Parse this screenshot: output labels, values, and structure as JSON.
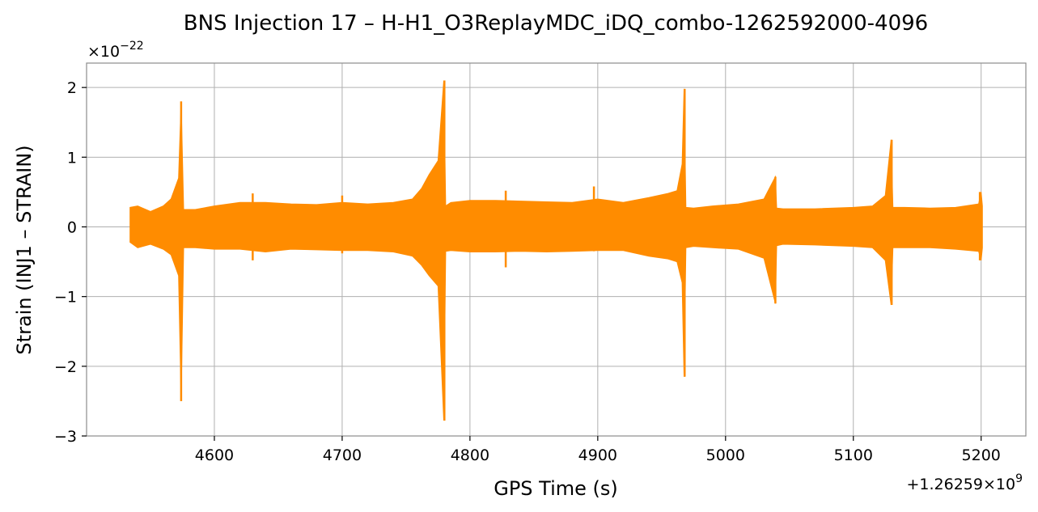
{
  "chart_data": {
    "type": "line",
    "title": "BNS Injection 17 – H-H1_O3ReplayMDC_iDQ_combo-1262592000-4096",
    "xlabel": "GPS Time (s)",
    "ylabel": "Strain (INJ1 – STRAIN)",
    "y_multiplier_text": "×10",
    "y_multiplier_exp": "−22",
    "x_offset_text": "+1.26259×10",
    "x_offset_exp": "9",
    "xlim": [
      4500,
      5235
    ],
    "ylim": [
      -3.0,
      2.35
    ],
    "x_ticks": [
      4600,
      4700,
      4800,
      4900,
      5000,
      5100,
      5200
    ],
    "x_tick_labels": [
      "4600",
      "4700",
      "4800",
      "4900",
      "5000",
      "5100",
      "5200"
    ],
    "y_ticks": [
      -3,
      -2,
      -1,
      0,
      1,
      2
    ],
    "y_tick_labels": [
      "−3",
      "−2",
      "−1",
      "0",
      "1",
      "2"
    ],
    "grid": true,
    "series": [
      {
        "color": "#ff8c00",
        "envelope": {
          "x": [
            4534,
            4540,
            4550,
            4560,
            4566,
            4572,
            4574,
            4576,
            4585,
            4600,
            4620,
            4640,
            4660,
            4680,
            4700,
            4720,
            4740,
            4755,
            4762,
            4768,
            4775,
            4779.5,
            4781,
            4785,
            4800,
            4820,
            4840,
            4860,
            4880,
            4900,
            4920,
            4940,
            4955,
            4962,
            4966,
            4967.5,
            4969,
            4975,
            4990,
            5010,
            5030,
            5039,
            5040,
            5045,
            5070,
            5100,
            5115,
            5125,
            5129.5,
            5131,
            5140,
            5160,
            5180,
            5198,
            5200,
            5201
          ],
          "upper": [
            0.28,
            0.3,
            0.22,
            0.3,
            0.4,
            0.7,
            1.8,
            0.25,
            0.25,
            0.3,
            0.35,
            0.35,
            0.33,
            0.32,
            0.35,
            0.33,
            0.35,
            0.4,
            0.55,
            0.75,
            0.95,
            2.1,
            0.3,
            0.35,
            0.38,
            0.38,
            0.37,
            0.36,
            0.35,
            0.4,
            0.35,
            0.42,
            0.48,
            0.52,
            0.9,
            1.98,
            0.28,
            0.27,
            0.3,
            0.33,
            0.4,
            0.72,
            0.27,
            0.26,
            0.26,
            0.28,
            0.3,
            0.45,
            1.25,
            0.28,
            0.28,
            0.27,
            0.28,
            0.33,
            0.5,
            0.3
          ],
          "lower": [
            -0.22,
            -0.3,
            -0.25,
            -0.32,
            -0.4,
            -0.7,
            -2.5,
            -0.3,
            -0.3,
            -0.32,
            -0.32,
            -0.36,
            -0.32,
            -0.33,
            -0.34,
            -0.34,
            -0.36,
            -0.42,
            -0.55,
            -0.7,
            -0.85,
            -2.78,
            -0.35,
            -0.34,
            -0.36,
            -0.36,
            -0.35,
            -0.36,
            -0.35,
            -0.34,
            -0.34,
            -0.42,
            -0.46,
            -0.5,
            -0.8,
            -2.15,
            -0.3,
            -0.28,
            -0.3,
            -0.32,
            -0.45,
            -1.1,
            -0.27,
            -0.25,
            -0.26,
            -0.28,
            -0.3,
            -0.48,
            -1.12,
            -0.3,
            -0.3,
            -0.3,
            -0.32,
            -0.35,
            -0.48,
            -0.3
          ]
        },
        "spikes": [
          {
            "x": 4574,
            "max": 1.8,
            "min": -2.5
          },
          {
            "x": 4630,
            "max": 0.48,
            "min": -0.48
          },
          {
            "x": 4700,
            "max": 0.45,
            "min": -0.38
          },
          {
            "x": 4780,
            "max": 2.1,
            "min": -2.78
          },
          {
            "x": 4828,
            "max": 0.52,
            "min": -0.58
          },
          {
            "x": 4897,
            "max": 0.58,
            "min": -0.35
          },
          {
            "x": 4968,
            "max": 1.98,
            "min": -2.15
          },
          {
            "x": 5039,
            "max": 0.72,
            "min": -1.1
          },
          {
            "x": 5130,
            "max": 1.25,
            "min": -1.12
          },
          {
            "x": 5199,
            "max": 0.5,
            "min": -0.48
          }
        ]
      }
    ]
  }
}
